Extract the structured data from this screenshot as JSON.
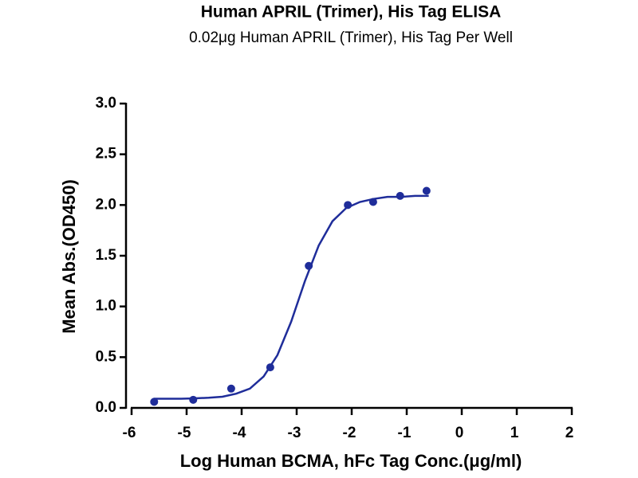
{
  "chart_data": {
    "type": "scatter",
    "title": "Human APRIL (Trimer), His Tag ELISA",
    "subtitle": "0.02μg Human APRIL (Trimer), His Tag Per Well",
    "x_label": "Log Human BCMA, hFc Tag Conc.(μg/ml)",
    "y_label": "Mean Abs.(OD450)",
    "xlim": [
      -6,
      2
    ],
    "ylim": [
      0,
      3
    ],
    "xticks": [
      -6,
      -5,
      -4,
      -3,
      -2,
      -1,
      0,
      1,
      2
    ],
    "yticks": [
      {
        "value": 0,
        "label": "0.0"
      },
      0.5,
      {
        "value": 1,
        "label": "1.0"
      },
      1.5,
      {
        "value": 2,
        "label": "2.0"
      },
      2.5,
      {
        "value": 3,
        "label": "3.0"
      }
    ],
    "series": [
      {
        "style": "markers",
        "color": "#1f2d9a",
        "x": [
          -5.59,
          -4.88,
          -4.19,
          -3.48,
          -2.78,
          -2.07,
          -1.61,
          -1.12,
          -0.64
        ],
        "values": [
          0.06,
          0.08,
          0.19,
          0.4,
          1.4,
          2.0,
          2.03,
          2.09,
          2.14
        ]
      },
      {
        "style": "line",
        "color": "#1f2d9a",
        "x": [
          -5.6,
          -5.35,
          -5.1,
          -4.85,
          -4.6,
          -4.35,
          -4.1,
          -3.85,
          -3.6,
          -3.35,
          -3.1,
          -2.85,
          -2.6,
          -2.35,
          -2.1,
          -1.85,
          -1.6,
          -1.35,
          -1.1,
          -0.85,
          -0.6
        ],
        "values": [
          0.09,
          0.09,
          0.09,
          0.094,
          0.1,
          0.11,
          0.14,
          0.19,
          0.31,
          0.52,
          0.85,
          1.25,
          1.6,
          1.84,
          1.97,
          2.03,
          2.06,
          2.08,
          2.08,
          2.09,
          2.09
        ]
      }
    ]
  }
}
